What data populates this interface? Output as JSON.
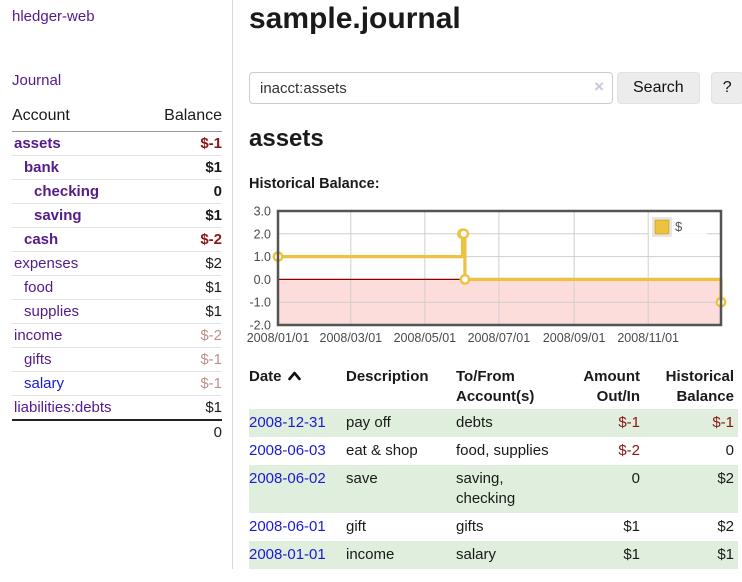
{
  "colors": {
    "link_purple": "#551a8b",
    "link_blue": "#1a1ad6",
    "negative_strong": "#8b1414",
    "negative_dim": "#bf8f8f",
    "row_highlight_green": "#dfeedd",
    "chart_series_yellow": "#edc240",
    "chart_negative_region": "#fddcdc",
    "chart_zero_line": "#8b0000"
  },
  "sidebar": {
    "app_title": "hledger-web",
    "nav_label": "Journal",
    "accounts_table": {
      "headers": [
        "Account",
        "Balance"
      ],
      "rows": [
        {
          "account": "assets",
          "level": 1,
          "bold": true,
          "balance": "$-1",
          "balance_class": "neg-strong"
        },
        {
          "account": "bank",
          "level": 2,
          "bold": true,
          "balance": "$1",
          "balance_class": ""
        },
        {
          "account": "checking",
          "level": 3,
          "bold": true,
          "balance": "0",
          "balance_class": ""
        },
        {
          "account": "saving",
          "level": 3,
          "bold": true,
          "balance": "$1",
          "balance_class": ""
        },
        {
          "account": "cash",
          "level": 2,
          "bold": true,
          "balance": "$-2",
          "balance_class": "neg-strong"
        },
        {
          "account": "expenses",
          "level": 1,
          "bold": false,
          "balance": "$2",
          "balance_class": ""
        },
        {
          "account": "food",
          "level": 2,
          "bold": false,
          "balance": "$1",
          "balance_class": ""
        },
        {
          "account": "supplies",
          "level": 2,
          "bold": false,
          "balance": "$1",
          "balance_class": ""
        },
        {
          "account": "income",
          "level": 1,
          "bold": false,
          "balance": "$-2",
          "balance_class": "neg-dim"
        },
        {
          "account": "gifts",
          "level": 2,
          "bold": false,
          "balance": "$-1",
          "balance_class": "neg-dim"
        },
        {
          "account": "salary",
          "level": 2,
          "bold": false,
          "link_color": "blue",
          "balance": "$-1",
          "balance_class": "neg-dim"
        },
        {
          "account": "liabilities:debts",
          "level": 1,
          "bold": false,
          "balance": "$1",
          "balance_class": ""
        }
      ],
      "total": "0"
    }
  },
  "main": {
    "title": "sample.journal",
    "search": {
      "value": "inacct:assets",
      "clear_icon": "×",
      "search_button": "Search",
      "help_button": "?"
    },
    "account_heading": "assets",
    "chart_heading": "Historical Balance:"
  },
  "chart_data": {
    "type": "line",
    "title": "Historical Balance",
    "step": true,
    "legend": [
      {
        "label": "$",
        "color": "#edc240"
      }
    ],
    "legend_position": "top-right",
    "grid": true,
    "xlim": [
      "2008-01-01",
      "2008-12-31"
    ],
    "ylim": [
      -2,
      3
    ],
    "y_ticks": [
      "3.0",
      "2.0",
      "1.0",
      "0.0",
      "-1.0",
      "-2.0"
    ],
    "x_ticks": [
      "2008/01/01",
      "2008/03/01",
      "2008/05/01",
      "2008/07/01",
      "2008/09/01",
      "2008/11/01"
    ],
    "series": [
      {
        "name": "$",
        "color": "#edc240",
        "points": [
          {
            "x": "2008-01-01",
            "y": 1
          },
          {
            "x": "2008-06-01",
            "y": 2
          },
          {
            "x": "2008-06-02",
            "y": 2
          },
          {
            "x": "2008-06-03",
            "y": 0
          },
          {
            "x": "2008-12-31",
            "y": -1
          }
        ]
      }
    ],
    "negative_region_below": 0
  },
  "register_table": {
    "headers": [
      {
        "line1": "Date",
        "line2": "",
        "align": "left",
        "sortable": true
      },
      {
        "line1": "Description",
        "line2": "",
        "align": "left"
      },
      {
        "line1": "To/From",
        "line2": "Account(s)",
        "align": "left"
      },
      {
        "line1": "Amount",
        "line2": "Out/In",
        "align": "right"
      },
      {
        "line1": "Historical",
        "line2": "Balance",
        "align": "right"
      }
    ],
    "rows": [
      {
        "date": "2008-12-31",
        "description": "pay off",
        "accounts": "debts",
        "amount": "$-1",
        "amount_negative": true,
        "balance": "$-1",
        "balance_negative": true,
        "highlight": true
      },
      {
        "date": "2008-06-03",
        "description": "eat & shop",
        "accounts": "food, supplies",
        "amount": "$-2",
        "amount_negative": true,
        "balance": "0",
        "balance_negative": false,
        "highlight": false
      },
      {
        "date": "2008-06-02",
        "description": "save",
        "accounts": "saving, checking",
        "amount": "0",
        "amount_negative": false,
        "balance": "$2",
        "balance_negative": false,
        "highlight": true
      },
      {
        "date": "2008-06-01",
        "description": "gift",
        "accounts": "gifts",
        "amount": "$1",
        "amount_negative": false,
        "balance": "$2",
        "balance_negative": false,
        "highlight": false
      },
      {
        "date": "2008-01-01",
        "description": "income",
        "accounts": "salary",
        "amount": "$1",
        "amount_negative": false,
        "balance": "$1",
        "balance_negative": false,
        "highlight": true
      }
    ]
  }
}
